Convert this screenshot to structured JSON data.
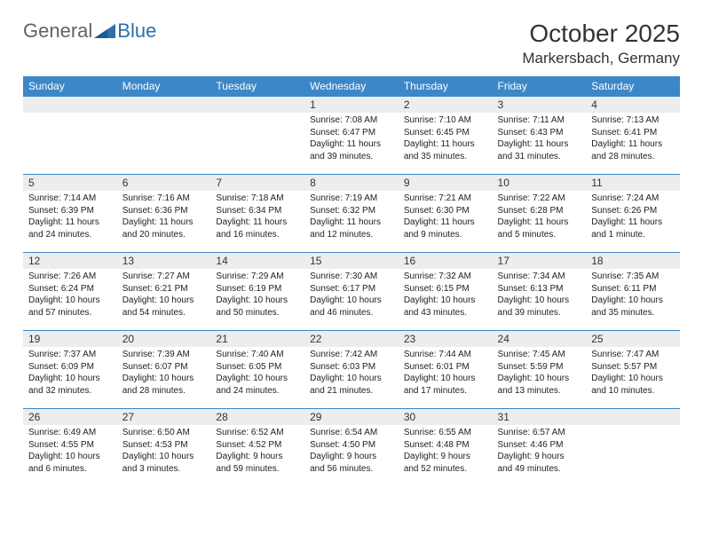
{
  "brand": {
    "general": "General",
    "blue": "Blue"
  },
  "title": "October 2025",
  "location": "Markersbach, Germany",
  "colors": {
    "header_bg": "#3c87c7",
    "header_text": "#ffffff",
    "daynum_bg": "#ededed",
    "row_border": "#3c87c7",
    "text": "#222222",
    "logo_gray": "#5f6368",
    "logo_blue": "#2f6fa8"
  },
  "weekdays": [
    "Sunday",
    "Monday",
    "Tuesday",
    "Wednesday",
    "Thursday",
    "Friday",
    "Saturday"
  ],
  "weeks": [
    [
      {
        "n": "",
        "sr": "",
        "ss": "",
        "dl": ""
      },
      {
        "n": "",
        "sr": "",
        "ss": "",
        "dl": ""
      },
      {
        "n": "",
        "sr": "",
        "ss": "",
        "dl": ""
      },
      {
        "n": "1",
        "sr": "Sunrise: 7:08 AM",
        "ss": "Sunset: 6:47 PM",
        "dl": "Daylight: 11 hours and 39 minutes."
      },
      {
        "n": "2",
        "sr": "Sunrise: 7:10 AM",
        "ss": "Sunset: 6:45 PM",
        "dl": "Daylight: 11 hours and 35 minutes."
      },
      {
        "n": "3",
        "sr": "Sunrise: 7:11 AM",
        "ss": "Sunset: 6:43 PM",
        "dl": "Daylight: 11 hours and 31 minutes."
      },
      {
        "n": "4",
        "sr": "Sunrise: 7:13 AM",
        "ss": "Sunset: 6:41 PM",
        "dl": "Daylight: 11 hours and 28 minutes."
      }
    ],
    [
      {
        "n": "5",
        "sr": "Sunrise: 7:14 AM",
        "ss": "Sunset: 6:39 PM",
        "dl": "Daylight: 11 hours and 24 minutes."
      },
      {
        "n": "6",
        "sr": "Sunrise: 7:16 AM",
        "ss": "Sunset: 6:36 PM",
        "dl": "Daylight: 11 hours and 20 minutes."
      },
      {
        "n": "7",
        "sr": "Sunrise: 7:18 AM",
        "ss": "Sunset: 6:34 PM",
        "dl": "Daylight: 11 hours and 16 minutes."
      },
      {
        "n": "8",
        "sr": "Sunrise: 7:19 AM",
        "ss": "Sunset: 6:32 PM",
        "dl": "Daylight: 11 hours and 12 minutes."
      },
      {
        "n": "9",
        "sr": "Sunrise: 7:21 AM",
        "ss": "Sunset: 6:30 PM",
        "dl": "Daylight: 11 hours and 9 minutes."
      },
      {
        "n": "10",
        "sr": "Sunrise: 7:22 AM",
        "ss": "Sunset: 6:28 PM",
        "dl": "Daylight: 11 hours and 5 minutes."
      },
      {
        "n": "11",
        "sr": "Sunrise: 7:24 AM",
        "ss": "Sunset: 6:26 PM",
        "dl": "Daylight: 11 hours and 1 minute."
      }
    ],
    [
      {
        "n": "12",
        "sr": "Sunrise: 7:26 AM",
        "ss": "Sunset: 6:24 PM",
        "dl": "Daylight: 10 hours and 57 minutes."
      },
      {
        "n": "13",
        "sr": "Sunrise: 7:27 AM",
        "ss": "Sunset: 6:21 PM",
        "dl": "Daylight: 10 hours and 54 minutes."
      },
      {
        "n": "14",
        "sr": "Sunrise: 7:29 AM",
        "ss": "Sunset: 6:19 PM",
        "dl": "Daylight: 10 hours and 50 minutes."
      },
      {
        "n": "15",
        "sr": "Sunrise: 7:30 AM",
        "ss": "Sunset: 6:17 PM",
        "dl": "Daylight: 10 hours and 46 minutes."
      },
      {
        "n": "16",
        "sr": "Sunrise: 7:32 AM",
        "ss": "Sunset: 6:15 PM",
        "dl": "Daylight: 10 hours and 43 minutes."
      },
      {
        "n": "17",
        "sr": "Sunrise: 7:34 AM",
        "ss": "Sunset: 6:13 PM",
        "dl": "Daylight: 10 hours and 39 minutes."
      },
      {
        "n": "18",
        "sr": "Sunrise: 7:35 AM",
        "ss": "Sunset: 6:11 PM",
        "dl": "Daylight: 10 hours and 35 minutes."
      }
    ],
    [
      {
        "n": "19",
        "sr": "Sunrise: 7:37 AM",
        "ss": "Sunset: 6:09 PM",
        "dl": "Daylight: 10 hours and 32 minutes."
      },
      {
        "n": "20",
        "sr": "Sunrise: 7:39 AM",
        "ss": "Sunset: 6:07 PM",
        "dl": "Daylight: 10 hours and 28 minutes."
      },
      {
        "n": "21",
        "sr": "Sunrise: 7:40 AM",
        "ss": "Sunset: 6:05 PM",
        "dl": "Daylight: 10 hours and 24 minutes."
      },
      {
        "n": "22",
        "sr": "Sunrise: 7:42 AM",
        "ss": "Sunset: 6:03 PM",
        "dl": "Daylight: 10 hours and 21 minutes."
      },
      {
        "n": "23",
        "sr": "Sunrise: 7:44 AM",
        "ss": "Sunset: 6:01 PM",
        "dl": "Daylight: 10 hours and 17 minutes."
      },
      {
        "n": "24",
        "sr": "Sunrise: 7:45 AM",
        "ss": "Sunset: 5:59 PM",
        "dl": "Daylight: 10 hours and 13 minutes."
      },
      {
        "n": "25",
        "sr": "Sunrise: 7:47 AM",
        "ss": "Sunset: 5:57 PM",
        "dl": "Daylight: 10 hours and 10 minutes."
      }
    ],
    [
      {
        "n": "26",
        "sr": "Sunrise: 6:49 AM",
        "ss": "Sunset: 4:55 PM",
        "dl": "Daylight: 10 hours and 6 minutes."
      },
      {
        "n": "27",
        "sr": "Sunrise: 6:50 AM",
        "ss": "Sunset: 4:53 PM",
        "dl": "Daylight: 10 hours and 3 minutes."
      },
      {
        "n": "28",
        "sr": "Sunrise: 6:52 AM",
        "ss": "Sunset: 4:52 PM",
        "dl": "Daylight: 9 hours and 59 minutes."
      },
      {
        "n": "29",
        "sr": "Sunrise: 6:54 AM",
        "ss": "Sunset: 4:50 PM",
        "dl": "Daylight: 9 hours and 56 minutes."
      },
      {
        "n": "30",
        "sr": "Sunrise: 6:55 AM",
        "ss": "Sunset: 4:48 PM",
        "dl": "Daylight: 9 hours and 52 minutes."
      },
      {
        "n": "31",
        "sr": "Sunrise: 6:57 AM",
        "ss": "Sunset: 4:46 PM",
        "dl": "Daylight: 9 hours and 49 minutes."
      },
      {
        "n": "",
        "sr": "",
        "ss": "",
        "dl": ""
      }
    ]
  ]
}
